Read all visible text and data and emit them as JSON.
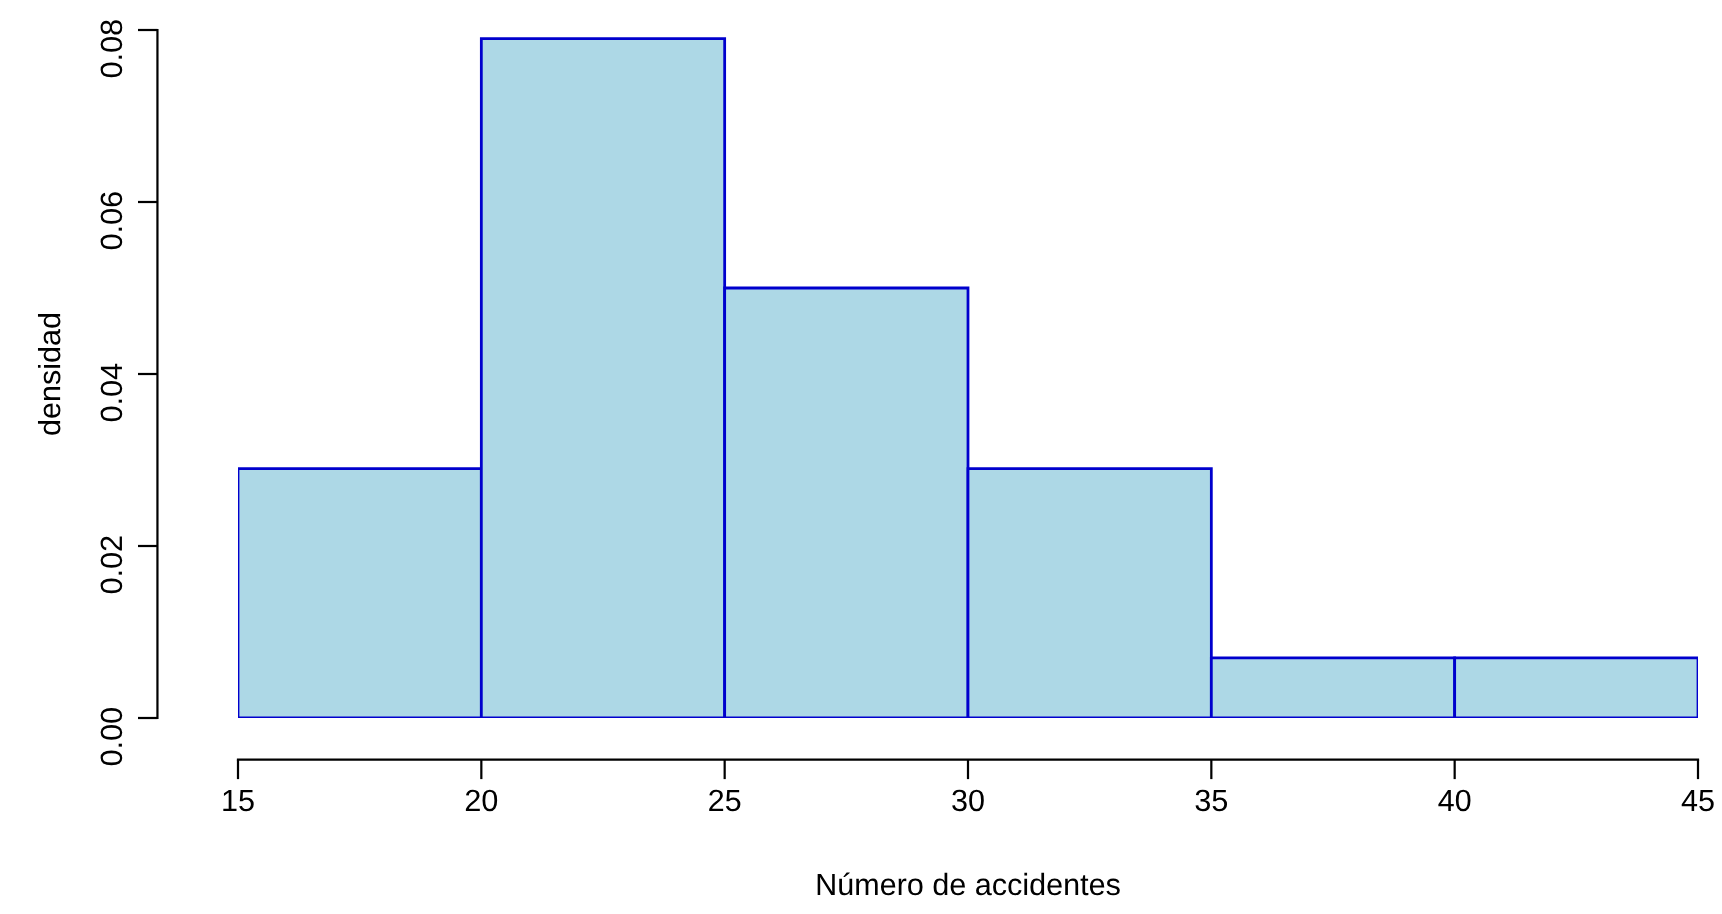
{
  "chart_data": {
    "type": "histogram",
    "xlabel": "Número de accidentes",
    "ylabel": "densidad",
    "bins": [
      15,
      20,
      25,
      30,
      35,
      40,
      45
    ],
    "values": [
      0.029,
      0.079,
      0.05,
      0.029,
      0.007,
      0.007
    ],
    "color": "#add8e6",
    "xlim": [
      15,
      45
    ],
    "ylim": [
      0,
      0.08
    ],
    "xticks": [
      15,
      20,
      25,
      30,
      35,
      40,
      45
    ],
    "yticks": [
      {
        "value": 0,
        "label": "0.00"
      },
      {
        "value": 0.02,
        "label": "0.02"
      },
      {
        "value": 0.04,
        "label": "0.04"
      },
      {
        "value": 0.06,
        "label": "0.06"
      },
      {
        "value": 0.08,
        "label": "0.08"
      }
    ],
    "grid": false,
    "legend": false
  }
}
